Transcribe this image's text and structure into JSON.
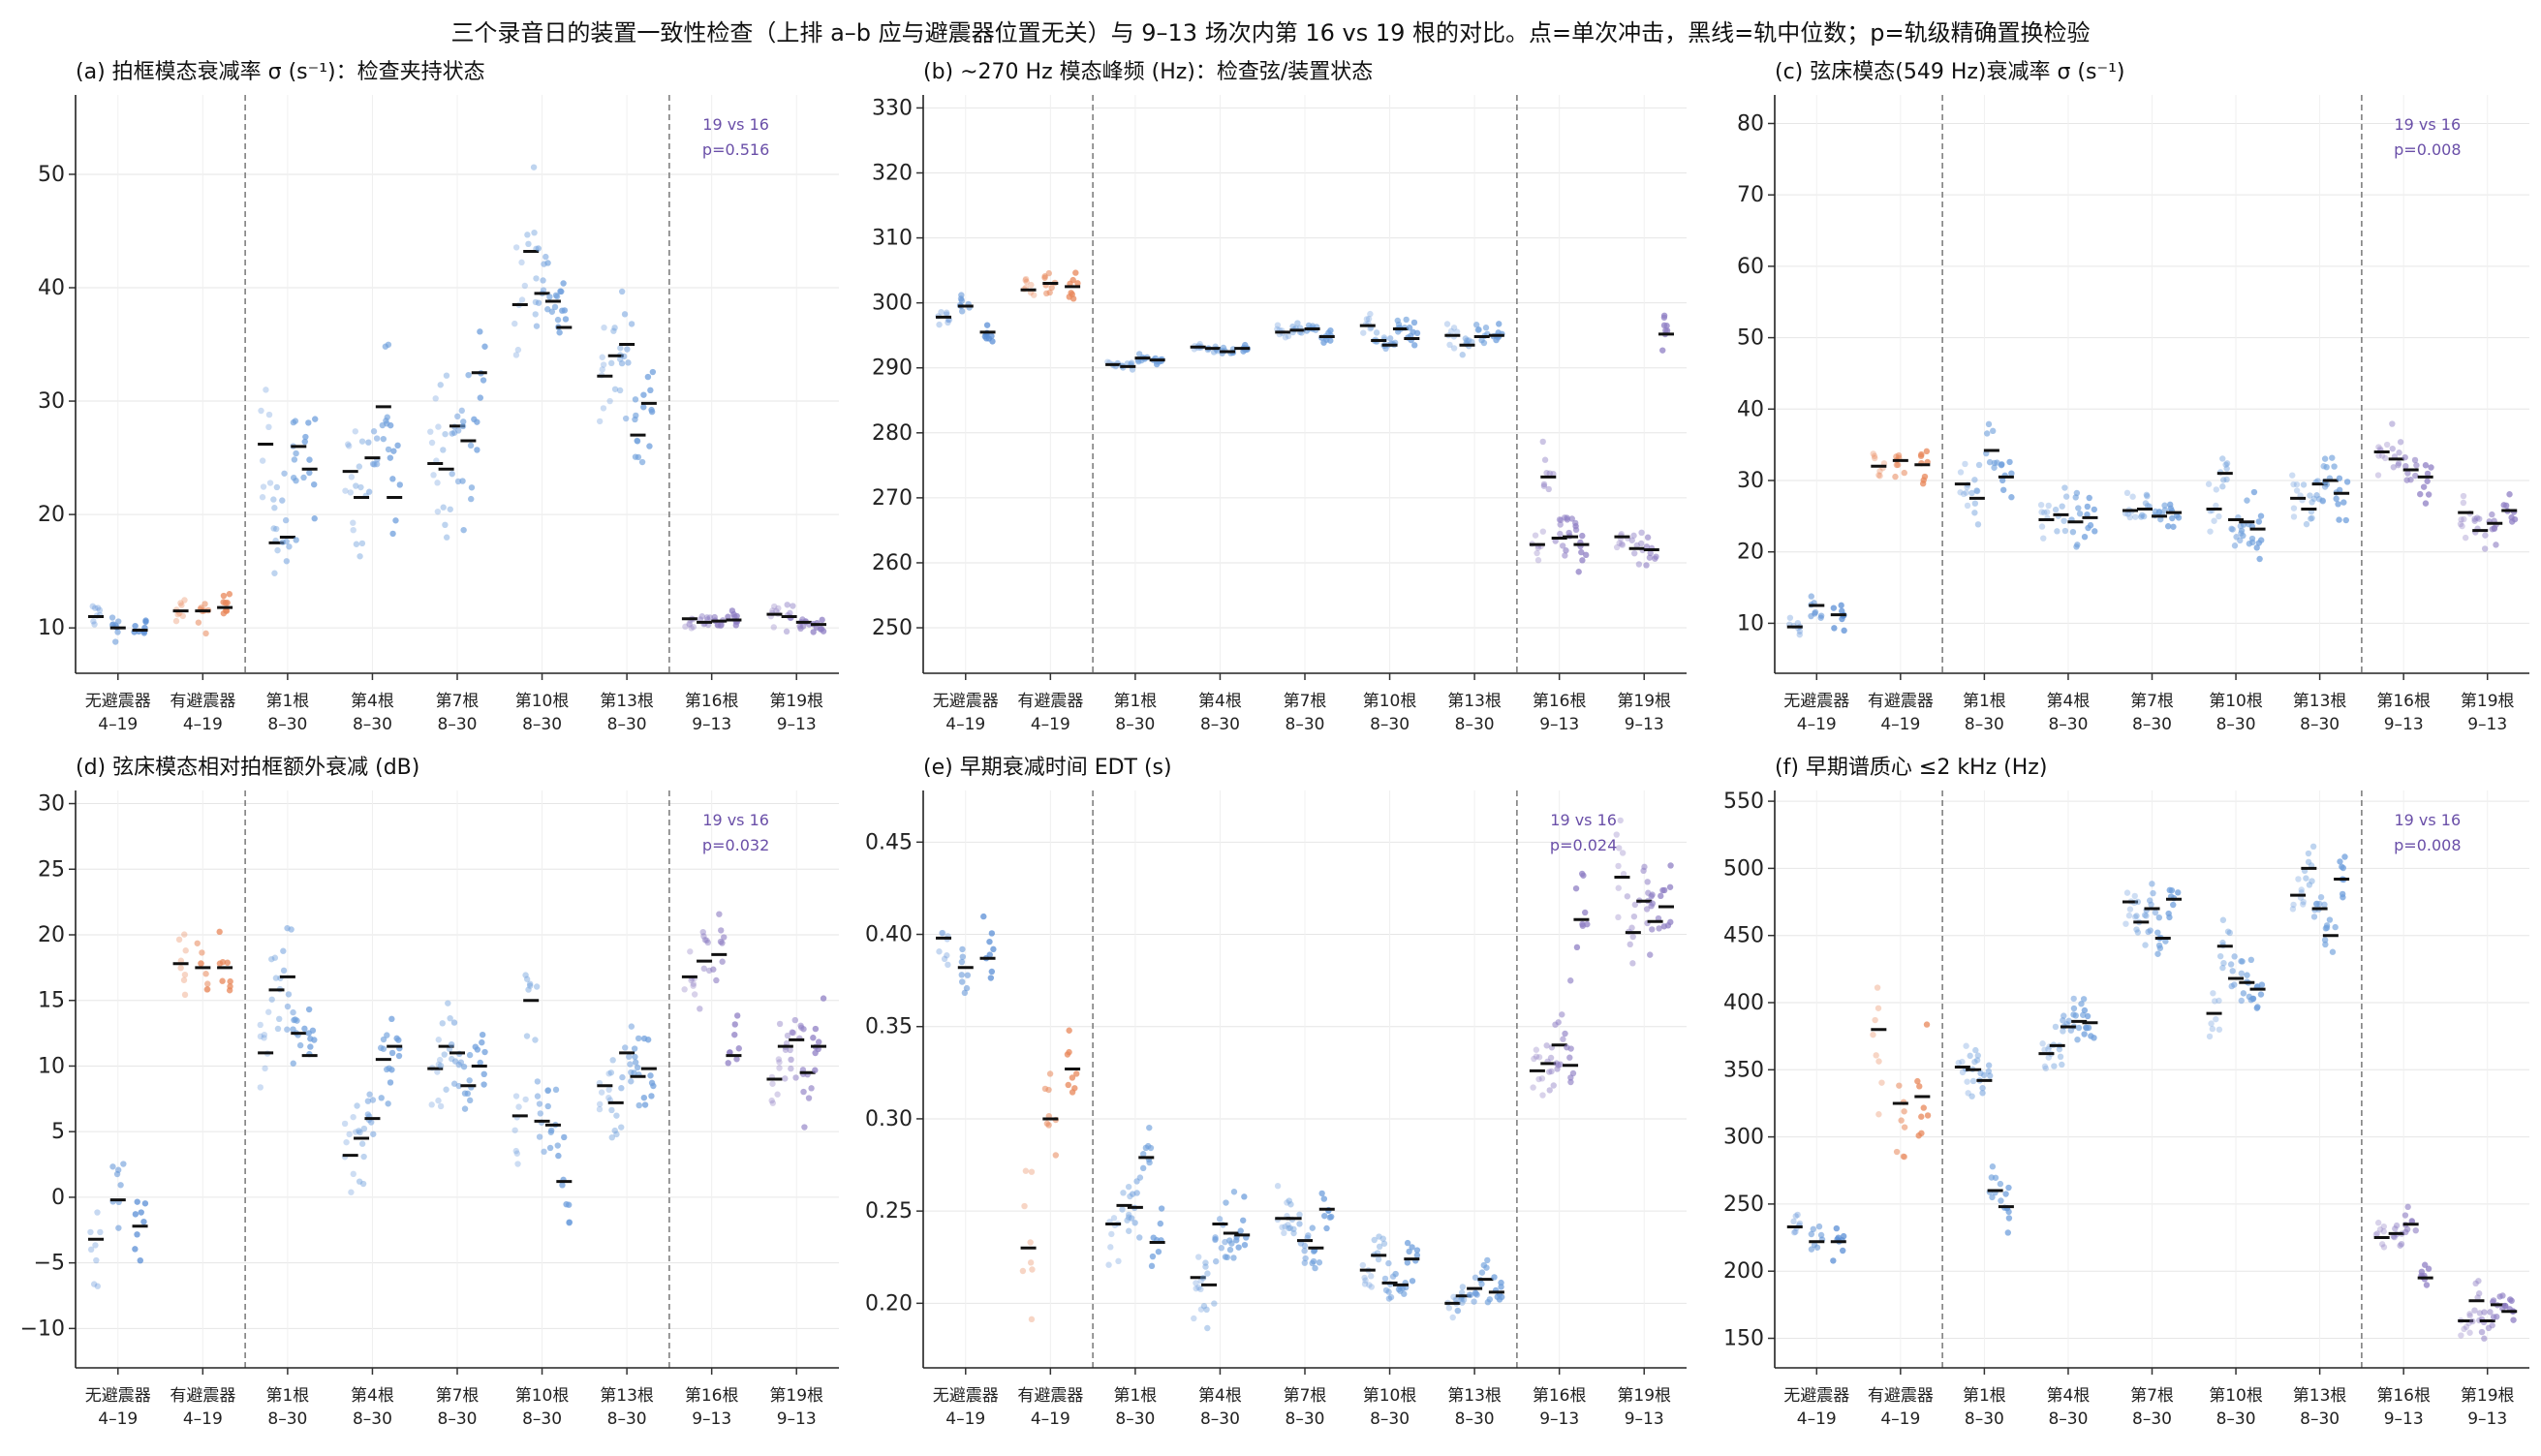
{
  "suptitle": "三个录音日的装置一致性检查（上排 a–b 应与避震器位置无关）与 9–13 场次内第 16 vs 19 根的对比。点=单次冲击，黑线=轨中位数；p=轨级精确置换检验",
  "colors": {
    "no_damper": "#5b8fd6",
    "damper": "#e8875a",
    "strings_8_30": "#6f9fdc",
    "strings_9_13": "#8f7fc4",
    "median": "#111111",
    "annotation": "#6a4fa8",
    "divider": "#777777"
  },
  "chart_data": [
    {
      "type": "scatter",
      "panel": "a",
      "title": "(a) 拍框模态衰减率 σ (s⁻¹)：检查夹持状态",
      "categories": [
        "无避震器\n4–19",
        "有避震器\n4–19",
        "第1根\n8–30",
        "第4根\n8–30",
        "第7根\n8–30",
        "第10根\n8–30",
        "第13根\n8–30",
        "第16根\n9–13",
        "第19根\n9–13"
      ],
      "ylim": [
        6,
        57
      ],
      "yticks": [
        10,
        20,
        30,
        40,
        50
      ],
      "track_medians": [
        [
          11.0,
          10.0,
          9.8
        ],
        [
          11.5,
          11.5,
          11.8
        ],
        [
          26.2,
          17.5,
          18.0,
          26.0,
          24.0
        ],
        [
          23.8,
          21.5,
          25.0,
          29.5,
          21.5
        ],
        [
          24.5,
          24.0,
          27.8,
          26.5,
          32.5
        ],
        [
          38.5,
          43.2,
          39.5,
          38.8,
          36.5
        ],
        [
          32.2,
          34.0,
          35.0,
          27.0,
          29.8
        ],
        [
          10.8,
          10.5,
          10.6,
          10.7
        ],
        [
          11.2,
          11.0,
          10.5,
          10.3
        ]
      ],
      "spreads": [
        1.5,
        1.5,
        7,
        7,
        7,
        6,
        4.5,
        0.8,
        1.0
      ],
      "annotation": "19 vs 16\np=0.516"
    },
    {
      "type": "scatter",
      "panel": "b",
      "title": "(b) ~270 Hz 模态峰频 (Hz)：检查弦/装置状态",
      "categories": [
        "无避震器\n4–19",
        "有避震器\n4–19",
        "第1根\n8–30",
        "第4根\n8–30",
        "第7根\n8–30",
        "第10根\n8–30",
        "第13根\n8–30",
        "第16根\n9–13",
        "第19根\n9–13"
      ],
      "ylim": [
        243,
        332
      ],
      "yticks": [
        250,
        260,
        270,
        280,
        290,
        300,
        310,
        320,
        330
      ],
      "track_medians": [
        [
          297.8,
          299.5,
          295.5
        ],
        [
          302.0,
          303.0,
          302.5
        ],
        [
          290.5,
          290.2,
          291.5,
          291.2
        ],
        [
          293.2,
          293.0,
          292.5,
          293.0
        ],
        [
          295.5,
          295.8,
          296.0,
          294.8
        ],
        [
          296.5,
          294.2,
          293.5,
          296.0,
          294.5
        ],
        [
          295.0,
          293.5,
          294.8,
          295.0
        ],
        [
          262.8,
          273.2,
          263.8,
          264.0,
          262.8
        ],
        [
          264.0,
          262.2,
          262.0,
          295.2
        ]
      ],
      "spreads": [
        2,
        2,
        0.7,
        0.5,
        1.0,
        2.0,
        2.0,
        4,
        3
      ],
      "annotation": ""
    },
    {
      "type": "scatter",
      "panel": "c",
      "title": "(c) 弦床模态(549 Hz)衰减率 σ (s⁻¹)",
      "categories": [
        "无避震器\n4–19",
        "有避震器\n4–19",
        "第1根\n8–30",
        "第4根\n8–30",
        "第7根\n8–30",
        "第10根\n8–30",
        "第13根\n8–30",
        "第16根\n9–13",
        "第19根\n9–13"
      ],
      "ylim": [
        3,
        84
      ],
      "yticks": [
        10,
        20,
        30,
        40,
        50,
        60,
        70,
        80
      ],
      "track_medians": [
        [
          9.5,
          12.5,
          11.2
        ],
        [
          32.0,
          32.8,
          32.2
        ],
        [
          29.5,
          27.5,
          34.2,
          30.5
        ],
        [
          24.5,
          25.2,
          24.2,
          24.8
        ],
        [
          25.8,
          26.0,
          25.0,
          25.5
        ],
        [
          26.0,
          31.0,
          24.5,
          24.2,
          23.2
        ],
        [
          27.5,
          26.0,
          29.5,
          30.0,
          28.2
        ],
        [
          34.0,
          33.0,
          31.5,
          30.5
        ],
        [
          25.5,
          23.0,
          24.0,
          25.8
        ]
      ],
      "spreads": [
        2.5,
        3,
        4,
        3.5,
        3,
        3.5,
        3,
        3.5,
        3
      ],
      "annotation": "19 vs 16\np=0.008"
    },
    {
      "type": "scatter",
      "panel": "d",
      "title": "(d) 弦床模态相对拍框额外衰减 (dB)",
      "categories": [
        "无避震器\n4–19",
        "有避震器\n4–19",
        "第1根\n8–30",
        "第4根\n8–30",
        "第7根\n8–30",
        "第10根\n8–30",
        "第13根\n8–30",
        "第16根\n9–13",
        "第19根\n9–13"
      ],
      "ylim": [
        -13,
        31
      ],
      "yticks": [
        -10,
        -5,
        0,
        5,
        10,
        15,
        20,
        25,
        30
      ],
      "track_medians": [
        [
          -3.2,
          -0.2,
          -2.2
        ],
        [
          17.8,
          17.5,
          17.5
        ],
        [
          11.0,
          15.8,
          16.8,
          12.5,
          10.8
        ],
        [
          3.2,
          4.5,
          6.0,
          10.5,
          11.5
        ],
        [
          9.8,
          11.5,
          11.0,
          8.5,
          10.0
        ],
        [
          6.2,
          15.0,
          5.8,
          5.5,
          1.2
        ],
        [
          8.5,
          7.2,
          11.0,
          9.2,
          9.8
        ],
        [
          16.8,
          18.0,
          18.5,
          10.8
        ],
        [
          9.0,
          11.5,
          12.0,
          9.5,
          11.5
        ]
      ],
      "spreads": [
        4,
        2.5,
        4,
        4,
        3.5,
        4,
        3,
        3,
        3
      ],
      "annotation": "19 vs 16\np=0.032"
    },
    {
      "type": "scatter",
      "panel": "e",
      "title": "(e) 早期衰减时间 EDT (s)",
      "categories": [
        "无避震器\n4–19",
        "有避震器\n4–19",
        "第1根\n8–30",
        "第4根\n8–30",
        "第7根\n8–30",
        "第10根\n8–30",
        "第13根\n8–30",
        "第16根\n9–13",
        "第19根\n9–13"
      ],
      "ylim": [
        0.165,
        0.478
      ],
      "yticks": [
        0.2,
        0.25,
        0.3,
        0.35,
        0.4,
        0.45
      ],
      "track_medians": [
        [
          0.398,
          0.382,
          0.387
        ],
        [
          0.23,
          0.3,
          0.327
        ],
        [
          0.243,
          0.253,
          0.252,
          0.279,
          0.233
        ],
        [
          0.214,
          0.21,
          0.243,
          0.238,
          0.237
        ],
        [
          0.246,
          0.246,
          0.234,
          0.23,
          0.251
        ],
        [
          0.218,
          0.226,
          0.211,
          0.21,
          0.224
        ],
        [
          0.2,
          0.204,
          0.208,
          0.213,
          0.206
        ],
        [
          0.326,
          0.33,
          0.34,
          0.329,
          0.408
        ],
        [
          0.431,
          0.401,
          0.418,
          0.407,
          0.415
        ]
      ],
      "spreads": [
        0.02,
        0.04,
        0.02,
        0.02,
        0.012,
        0.012,
        0.01,
        0.03,
        0.025
      ],
      "annotation": "19 vs 16\np=0.024"
    },
    {
      "type": "scatter",
      "panel": "f",
      "title": "(f) 早期谱质心 ≤2 kHz (Hz)",
      "categories": [
        "无避震器\n4–19",
        "有避震器\n4–19",
        "第1根\n8–30",
        "第4根\n8–30",
        "第7根\n8–30",
        "第10根\n8–30",
        "第13根\n8–30",
        "第16根\n9–13",
        "第19根\n9–13"
      ],
      "ylim": [
        128,
        558
      ],
      "yticks": [
        150,
        200,
        250,
        300,
        350,
        400,
        450,
        500,
        550
      ],
      "track_medians": [
        [
          233.0,
          222.0,
          222.0
        ],
        [
          380.0,
          325.0,
          330.0
        ],
        [
          352.0,
          350.0,
          342.0,
          260.0,
          248.0
        ],
        [
          362.0,
          368.0,
          382.0,
          386.0,
          385.0
        ],
        [
          475.0,
          460.0,
          470.0,
          448.0,
          477.0
        ],
        [
          392.0,
          442.0,
          418.0,
          415.0,
          410.0
        ],
        [
          480.0,
          500.0,
          470.0,
          450.0,
          492.0
        ],
        [
          225.0,
          228.0,
          235.0,
          195.0
        ],
        [
          163.0,
          178.0,
          163.0,
          175.0,
          170.0
        ]
      ],
      "spreads": [
        12,
        50,
        20,
        18,
        18,
        20,
        22,
        12,
        15
      ],
      "annotation": "19 vs 16\np=0.008"
    }
  ]
}
